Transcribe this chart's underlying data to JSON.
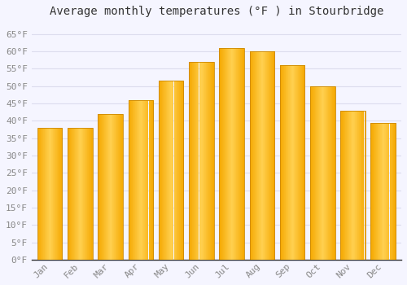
{
  "title": "Average monthly temperatures (°F ) in Stourbridge",
  "months": [
    "Jan",
    "Feb",
    "Mar",
    "Apr",
    "May",
    "Jun",
    "Jul",
    "Aug",
    "Sep",
    "Oct",
    "Nov",
    "Dec"
  ],
  "values": [
    38,
    38,
    42,
    46,
    51.5,
    57,
    61,
    60,
    56,
    50,
    43,
    39.5
  ],
  "bar_color_center": "#FFD050",
  "bar_color_edge": "#F5A800",
  "background_color": "#F5F5FF",
  "plot_bg_color": "#F5F5FF",
  "grid_color": "#DDDDEE",
  "yticks": [
    0,
    5,
    10,
    15,
    20,
    25,
    30,
    35,
    40,
    45,
    50,
    55,
    60,
    65
  ],
  "ylim": [
    0,
    68
  ],
  "title_fontsize": 10,
  "tick_fontsize": 8,
  "figsize": [
    5.0,
    3.5
  ],
  "dpi": 100
}
